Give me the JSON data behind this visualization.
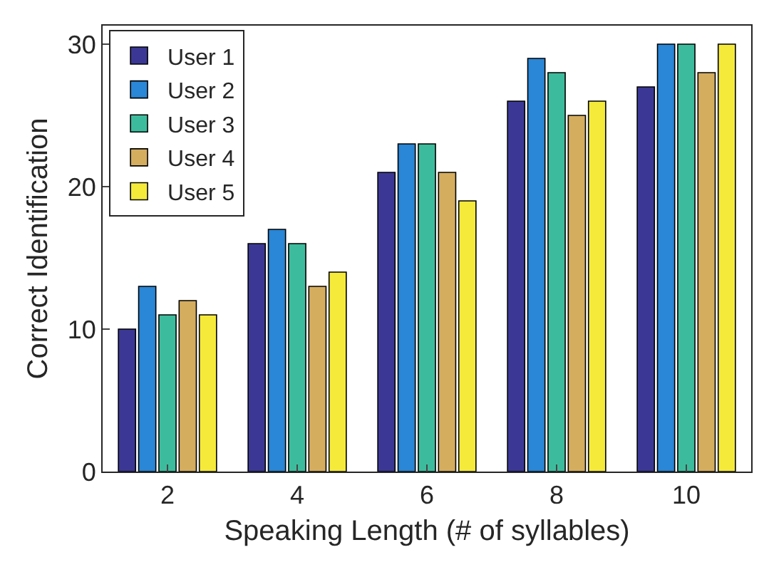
{
  "chart_data": {
    "type": "bar",
    "xlabel": "Speaking Length (# of syllables)",
    "ylabel": "Correct Identification",
    "categories": [
      "2",
      "4",
      "6",
      "8",
      "10"
    ],
    "series": [
      {
        "name": "User 1",
        "color": "#3b3895",
        "values": [
          10,
          16,
          21,
          26,
          27
        ]
      },
      {
        "name": "User 2",
        "color": "#2a86d6",
        "values": [
          13,
          17,
          23,
          29,
          30
        ]
      },
      {
        "name": "User 3",
        "color": "#3dbc9d",
        "values": [
          11,
          16,
          23,
          28,
          30
        ]
      },
      {
        "name": "User 4",
        "color": "#d5ad5f",
        "values": [
          12,
          13,
          21,
          25,
          28
        ]
      },
      {
        "name": "User 5",
        "color": "#f5ea3a",
        "values": [
          11,
          14,
          19,
          26,
          30
        ]
      }
    ],
    "ylim": [
      0,
      31.3
    ],
    "yticks": [
      0,
      10,
      20,
      30
    ],
    "grid": false,
    "legend": "top left"
  }
}
